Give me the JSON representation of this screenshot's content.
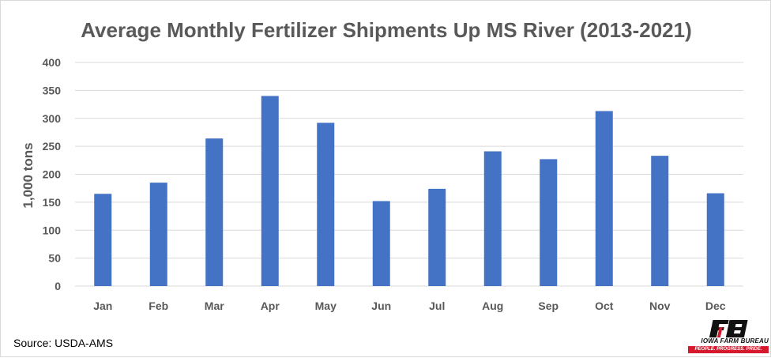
{
  "chart_data": {
    "type": "bar",
    "title": "Average Monthly Fertilizer Shipments Up MS River (2013-2021)",
    "xlabel": "",
    "ylabel": "1,000 tons",
    "categories": [
      "Jan",
      "Feb",
      "Mar",
      "Apr",
      "May",
      "Jun",
      "Jul",
      "Aug",
      "Sep",
      "Oct",
      "Nov",
      "Dec"
    ],
    "values": [
      165,
      185,
      264,
      340,
      292,
      152,
      174,
      241,
      227,
      313,
      233,
      166
    ],
    "ylim": [
      0,
      400
    ],
    "yticks": [
      0,
      50,
      100,
      150,
      200,
      250,
      300,
      350,
      400
    ],
    "grid": true,
    "legend": "none",
    "bar_color": "#4472C4",
    "gridline_color": "#D9D9D9"
  },
  "footer": {
    "source": "Source: USDA-AMS"
  },
  "logo": {
    "name": "IOWA FARM BUREAU",
    "tagline": "PEOPLE. PROGRESS. PRIDE.",
    "brand_color": "#D7192D"
  }
}
